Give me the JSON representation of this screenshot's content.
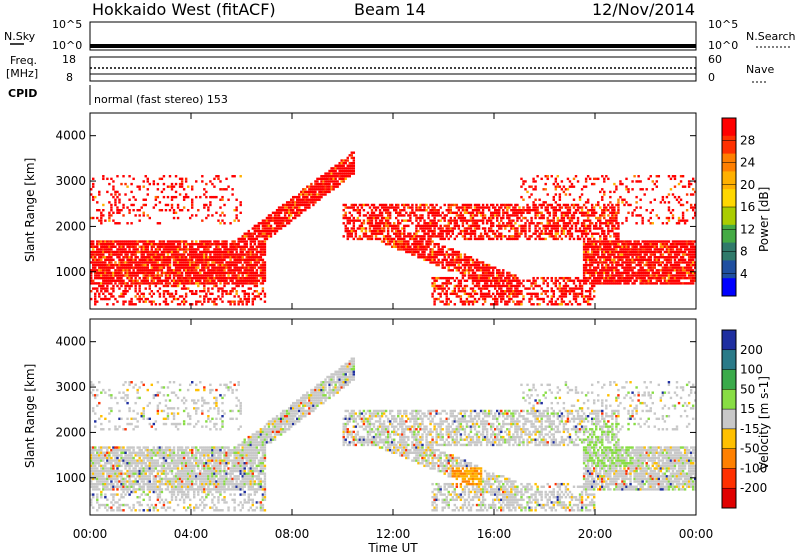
{
  "header": {
    "station": "Hokkaido West (fitACF)",
    "beam": "Beam 14",
    "date": "12/Nov/2014"
  },
  "top_panels": {
    "nsky_label": "N.Sky",
    "nsky_ticks": [
      "10^5",
      "10^0"
    ],
    "nsearch_label": "N.Search",
    "nsearch_ticks": [
      "10^5",
      "10^0"
    ],
    "freq_label_1": "Freq.",
    "freq_label_2": "[MHz]",
    "freq_ticks": [
      "18",
      "8"
    ],
    "nave_label": "Nave",
    "nave_ticks": [
      "60",
      "0"
    ],
    "cpid_label": "CPID",
    "cpid_text": "normal (fast stereo) 153"
  },
  "chart_data": [
    {
      "type": "heatmap",
      "parameter": "Power",
      "ylabel": "Slant Range [km]",
      "yticks": [
        "4000",
        "3000",
        "2000",
        "1000"
      ],
      "ylim": [
        180,
        4500
      ],
      "xlim_hours": [
        0,
        24
      ],
      "colorbar_label": "Power [dB]",
      "colorbar_ticks": [
        "28",
        "24",
        "20",
        "16",
        "12",
        "8",
        "4"
      ],
      "colorbar_colors": [
        "#ff0000",
        "#ff3000",
        "#ff7f00",
        "#ffb000",
        "#ffd700",
        "#aacc00",
        "#44aa44",
        "#2f7a6a",
        "#1f4fa0",
        "#0000ff"
      ]
    },
    {
      "type": "heatmap",
      "parameter": "Velocity",
      "ylabel": "Slant Range [km]",
      "yticks": [
        "4000",
        "3000",
        "2000",
        "1000"
      ],
      "ylim": [
        180,
        4500
      ],
      "xlim_hours": [
        0,
        24
      ],
      "colorbar_label": "Velocity [m s-1]",
      "colorbar_ticks": [
        "200",
        "100",
        "50",
        "15",
        "-15",
        "-50",
        "-100",
        "-200"
      ],
      "colorbar_colors": [
        "#1f2fa0",
        "#2a7a88",
        "#3aaa4a",
        "#88dd44",
        "#c8c8c8",
        "#ffc000",
        "#ff8000",
        "#ff3000",
        "#e00000"
      ]
    }
  ],
  "xaxis": {
    "tick_labels": [
      "00:00",
      "04:00",
      "08:00",
      "12:00",
      "16:00",
      "20:00",
      "00:00"
    ],
    "title": "Time UT"
  }
}
